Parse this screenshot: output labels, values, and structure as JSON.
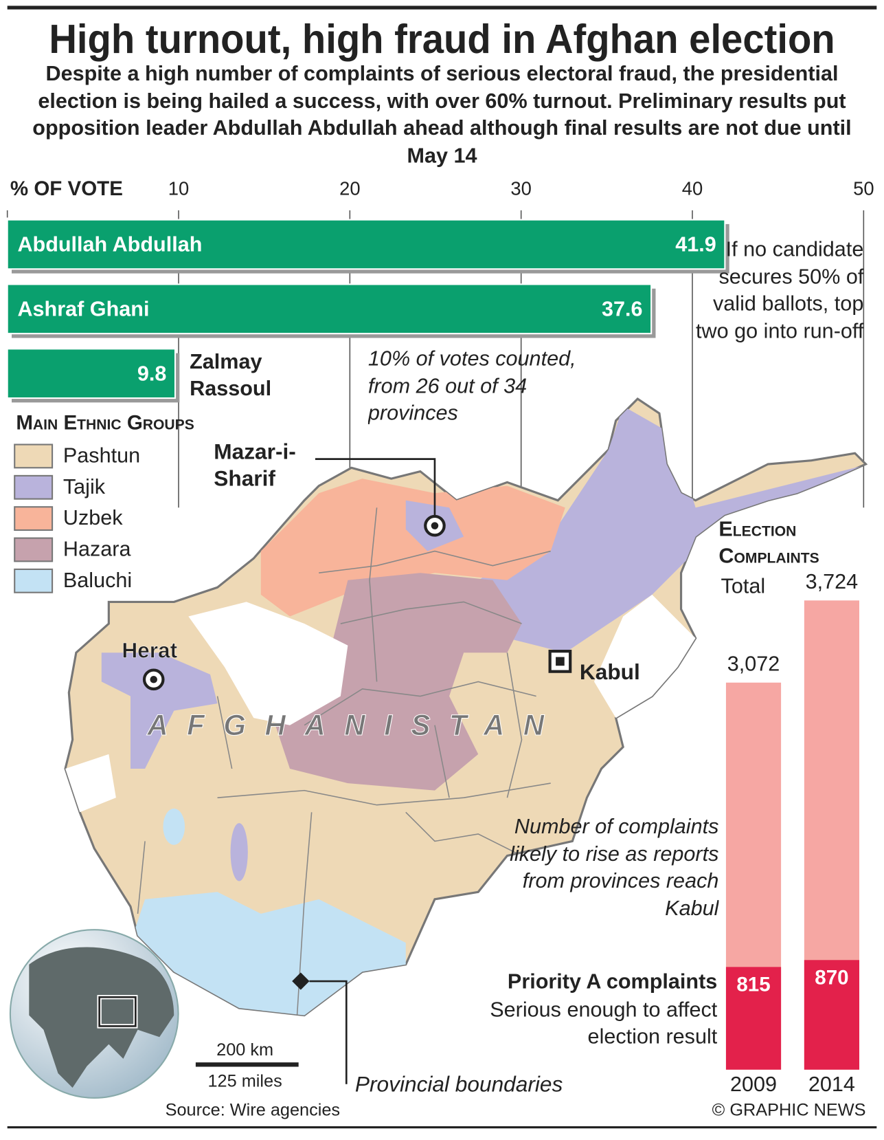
{
  "header": {
    "title": "High turnout, high fraud in Afghan election",
    "subtitle": "Despite a high number of complaints of serious electoral fraud, the presidential election is being hailed a success, with over 60% turnout. Preliminary results put opposition leader Abdullah Abdullah ahead although final results are not due until May 14"
  },
  "chart_data": [
    {
      "type": "bar",
      "orientation": "horizontal",
      "axis_label": "% OF VOTE",
      "categories": [
        "Abdullah Abdullah",
        "Ashraf Ghani",
        "Zalmay Rassoul"
      ],
      "values": [
        41.9,
        37.6,
        9.8
      ],
      "color": "#0aa06e",
      "xlim": [
        0,
        50
      ],
      "xticks": [
        10,
        20,
        30,
        40,
        50
      ],
      "grid": true,
      "annotations": [
        "10% of votes counted, from 26 out of 34 provinces",
        "If no candidate secures 50% of valid ballots, top two go into run-off"
      ]
    },
    {
      "type": "overlapped_bar",
      "title": "Election Complaints",
      "categories": [
        "2009",
        "2014"
      ],
      "series": [
        {
          "name": "Total",
          "color": "#f6a7a3",
          "values": [
            3072,
            3724
          ],
          "value_labels": [
            "3,072",
            "3,724"
          ]
        },
        {
          "name": "Priority A complaints",
          "description": "Serious enough to affect election result",
          "color": "#e3214b",
          "values": [
            815,
            870
          ]
        }
      ],
      "annotation": "Number of complaints likely to rise as reports from provinces reach Kabul"
    }
  ],
  "map": {
    "legend_title": "Main Ethnic Groups",
    "groups": [
      {
        "name": "Pashtun",
        "color": "#eed9b6"
      },
      {
        "name": "Tajik",
        "color": "#b9b3dc"
      },
      {
        "name": "Uzbek",
        "color": "#f8b49a"
      },
      {
        "name": "Hazara",
        "color": "#c6a2ad"
      },
      {
        "name": "Baluchi",
        "color": "#c3e2f4"
      }
    ],
    "cities": [
      "Mazar-i-Sharif",
      "Herat",
      "Kabul"
    ],
    "country": "AFGHANISTAN",
    "boundaries_label": "Provincial boundaries",
    "scale": [
      "200 km",
      "125 miles"
    ]
  },
  "footer": {
    "source": "Source: Wire agencies",
    "credit": "© GRAPHIC NEWS"
  }
}
